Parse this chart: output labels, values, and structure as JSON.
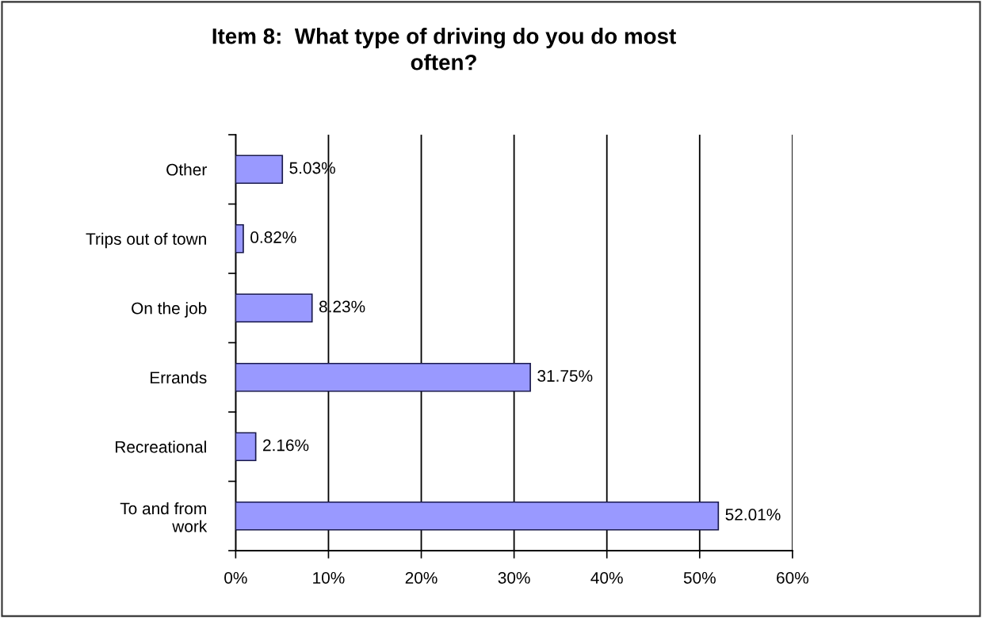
{
  "chart_data": {
    "type": "bar",
    "orientation": "horizontal",
    "title": "Item 8:  What type of driving do you do most\noften?",
    "categories": [
      "Other",
      "Trips out of town",
      "On the job",
      "Errands",
      "Recreational",
      "To and from\nwork"
    ],
    "values": [
      5.03,
      0.82,
      8.23,
      31.75,
      2.16,
      52.01
    ],
    "value_labels": [
      "5.03%",
      "0.82%",
      "8.23%",
      "31.75%",
      "2.16%",
      "52.01%"
    ],
    "color": "#9999ff",
    "xlim": [
      0,
      60
    ],
    "xticks": [
      {
        "value": 0,
        "label": "0%"
      },
      {
        "value": 10,
        "label": "10%"
      },
      {
        "value": 20,
        "label": "20%"
      },
      {
        "value": 30,
        "label": "30%"
      },
      {
        "value": 40,
        "label": "40%"
      },
      {
        "value": 50,
        "label": "50%"
      },
      {
        "value": 60,
        "label": "60%"
      }
    ],
    "grid": "x",
    "legend": false
  }
}
